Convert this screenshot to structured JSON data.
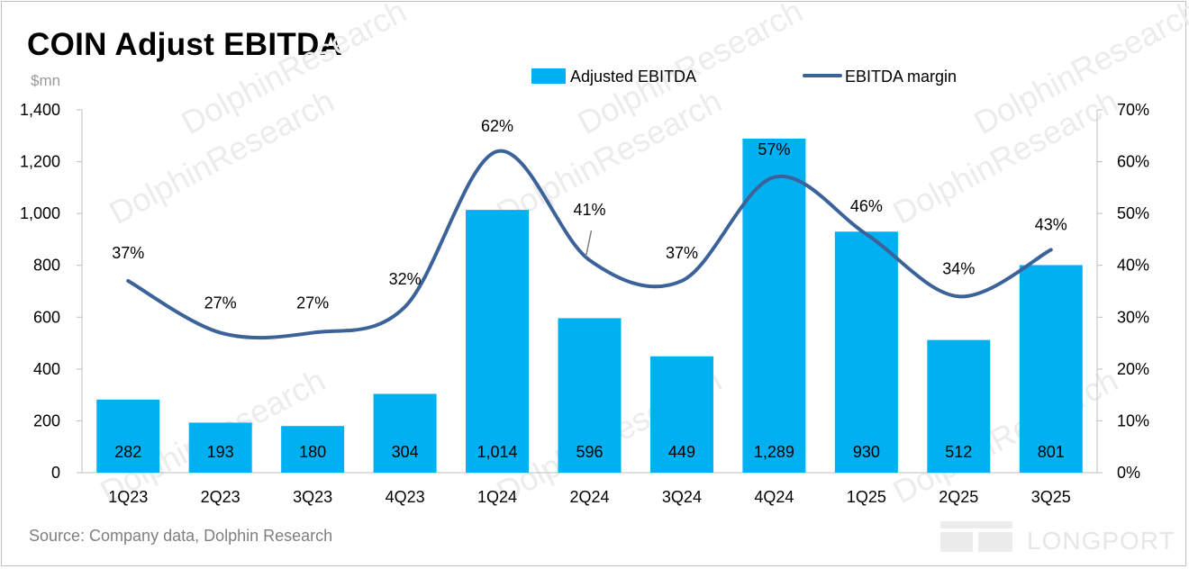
{
  "header": {
    "title": "COIN Adjust EBITDA",
    "unit": "$mn"
  },
  "footer": {
    "source": "Source: Company data, Dolphin Research",
    "brand": "LONGPORT"
  },
  "watermark": "DolphinResearch",
  "colors": {
    "bar": "#00b0f0",
    "line": "#3c6399",
    "axis": "#bfbfbf"
  },
  "chart_data": {
    "type": "bar",
    "title": "COIN Adjust EBITDA",
    "categories": [
      "1Q23",
      "2Q23",
      "3Q23",
      "4Q23",
      "1Q24",
      "2Q24",
      "3Q24",
      "4Q24",
      "1Q25",
      "2Q25",
      "3Q25"
    ],
    "series": [
      {
        "name": "Adjusted EBITDA",
        "type": "bar",
        "axis": "left",
        "values": [
          282,
          193,
          180,
          304,
          1014,
          596,
          449,
          1289,
          930,
          512,
          801
        ],
        "labels": [
          "282",
          "193",
          "180",
          "304",
          "1,014",
          "596",
          "449",
          "1,289",
          "930",
          "512",
          "801"
        ]
      },
      {
        "name": "EBITDA margin",
        "type": "line",
        "axis": "right",
        "values": [
          37,
          27,
          27,
          32,
          62,
          41,
          37,
          57,
          46,
          34,
          43
        ],
        "labels": [
          "37%",
          "27%",
          "27%",
          "32%",
          "62%",
          "41%",
          "37%",
          "57%",
          "46%",
          "34%",
          "43%"
        ]
      }
    ],
    "ylim": [
      0,
      1400
    ],
    "yticks": [
      "0",
      "200",
      "400",
      "600",
      "800",
      "1,000",
      "1,200",
      "1,400"
    ],
    "y2lim": [
      0,
      70
    ],
    "y2ticks": [
      "0%",
      "10%",
      "20%",
      "30%",
      "40%",
      "50%",
      "60%",
      "70%"
    ],
    "legend": "top-right",
    "grid": false
  }
}
